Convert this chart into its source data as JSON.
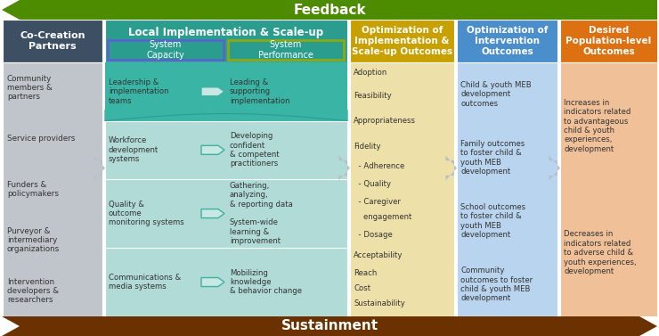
{
  "fig_w": 7.4,
  "fig_h": 3.77,
  "dpi": 100,
  "feedback_color": "#4d8b00",
  "sustainment_color": "#6b3200",
  "col1_header_bg": "#3d4f62",
  "col1_body_bg": "#c0c5cc",
  "col2_header_bg": "#2a9d8f",
  "col2_top_band_bg": "#3ab5a5",
  "col2_body_bg": "#b0dbd6",
  "col2_sub1_border": "#5566cc",
  "col2_sub2_border": "#8aaa10",
  "col3_header_bg": "#c8a000",
  "col3_body_bg": "#ede0a8",
  "col4_header_bg": "#4a8ecc",
  "col4_body_bg": "#b8d4ee",
  "col5_header_bg": "#dd7010",
  "col5_body_bg": "#f0c098",
  "arrow_gray": "#b8bfc8",
  "arrow_teal_fill": "#c8e8e4",
  "arrow_teal_edge": "#40b0a0",
  "text_white": "#ffffff",
  "text_dark": "#333333",
  "col1_header": "Co-Creation\nPartners",
  "col1_items": [
    "Community\nmembers &\npartners",
    "Service providers",
    "Funders &\npolicymakers",
    "Purveyor &\nintermediary\norganizations",
    "Intervention\ndevelopers &\nresearchers"
  ],
  "col2_header": "Local Implementation & Scale-up",
  "col2_sub1": "System\nCapacity",
  "col2_sub2": "System\nPerformance",
  "col2_left": [
    "Leadership &\nimplementation\nteams",
    "Workforce\ndevelopment\nsystems",
    "Quality &\noutcome\nmonitoring systems",
    "Communications &\nmedia systems"
  ],
  "col2_right": [
    "Leading &\nsupporting\nimplementation",
    "Developing\nconfident\n& competent\npractitioners",
    "Gathering,\nanalyzing,\n& reporting data\n\nSystem-wide\nlearning &\nimprovement",
    "Mobilizing\nknowledge\n& behavior change"
  ],
  "col3_header": "Optimization of\nImplementation &\nScale-up Outcomes",
  "col3_items_top": [
    "Adoption",
    "Feasibility",
    "Appropriateness",
    "Fidelity"
  ],
  "col3_fidelity_subs": [
    "- Adherence",
    "- Quality",
    "- Caregiver\n  engagement",
    "- Dosage"
  ],
  "col3_items_bot": [
    "Acceptability",
    "Reach",
    "Cost",
    "Sustainability"
  ],
  "col4_header": "Optimization of\nIntervention\nOutcomes",
  "col4_items": [
    "Child & youth MEB\ndevelopment\noutcomes",
    "Family outcomes\nto foster child &\nyouth MEB\ndevelopment",
    "School outcomes\nto foster child &\nyouth MEB\ndevelopment",
    "Community\noutcomes to foster\nchild & youth MEB\ndevelopment"
  ],
  "col5_header": "Desired\nPopulation-level\nOutcomes",
  "col5_items": [
    "Increases in\nindicators related\nto advantageous\nchild & youth\nexperiences,\ndevelopment",
    "Decreases in\nindicators related\nto adverse child &\nyouth experiences,\ndevelopment"
  ]
}
